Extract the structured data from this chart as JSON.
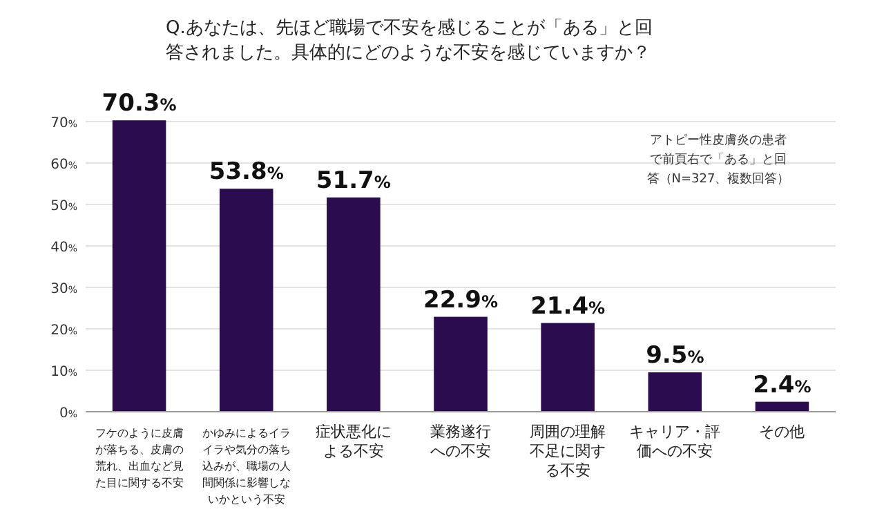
{
  "chart_data": {
    "type": "bar",
    "title": "Q.あなたは、先ほど職場で不安を感じることが「ある」と回答されました。具体的にどのような不安を感じていますか？",
    "categories": [
      "フケのように皮膚が落ちる、皮膚の荒れ、出血など見た目に関する不安",
      "かゆみによるイライラや気分の落ち込みが、職場の人間関係に影響しないかという不安",
      "症状悪化による不安",
      "業務遂行への不安",
      "周囲の理解不足に関する不安",
      "キャリア・評価への不安",
      "その他"
    ],
    "values": [
      70.3,
      53.8,
      51.7,
      22.9,
      21.4,
      9.5,
      2.4
    ],
    "value_labels": [
      "70.3%",
      "53.8%",
      "51.7%",
      "22.9%",
      "21.4%",
      "9.5%",
      "2.4%"
    ],
    "color": "#2b0c4e",
    "ylim": [
      0,
      71
    ],
    "yticks": [
      {
        "value": 0,
        "label": "0%"
      },
      {
        "value": 10,
        "label": "10%"
      },
      {
        "value": 20,
        "label": "20%"
      },
      {
        "value": 30,
        "label": "30%"
      },
      {
        "value": 40,
        "label": "40%"
      },
      {
        "value": 50,
        "label": "50%"
      },
      {
        "value": 60,
        "label": "60%"
      },
      {
        "value": 70,
        "label": "70%"
      }
    ],
    "grid": "y",
    "annotations": [
      "アトピー性皮膚炎の患者で前頁右で「ある」と回答（N=327、複数回答）"
    ]
  }
}
